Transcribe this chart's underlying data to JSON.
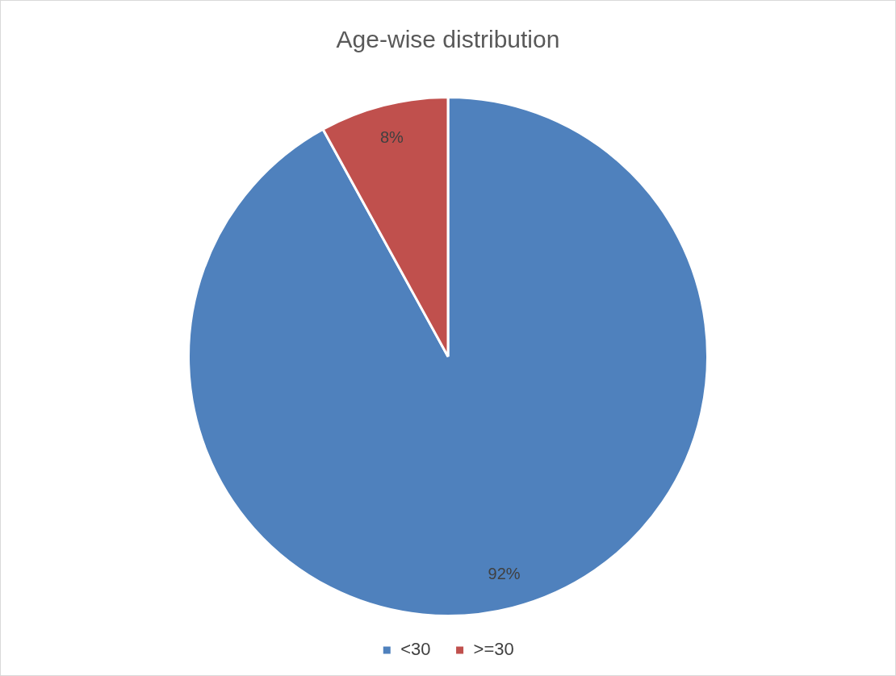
{
  "chart_data": {
    "type": "pie",
    "title": "Age-wise distribution",
    "categories": [
      "<30",
      ">=30"
    ],
    "values": [
      92,
      8
    ],
    "colors": [
      "#4f81bd",
      "#c0504d"
    ],
    "value_labels": [
      "92%",
      "8%"
    ],
    "legend": "bottom"
  }
}
